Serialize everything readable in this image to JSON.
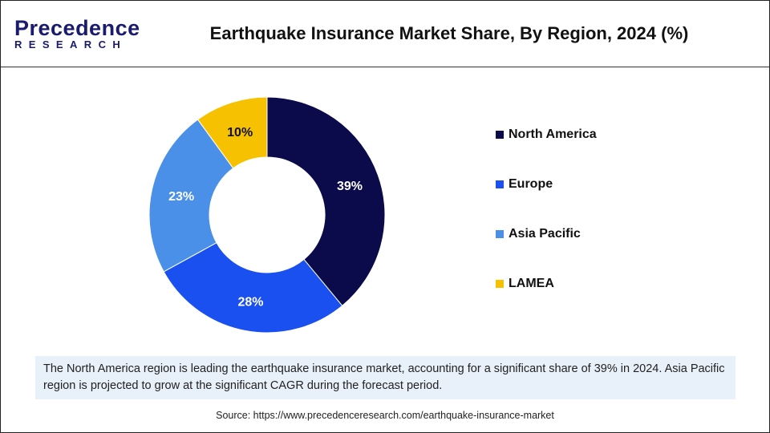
{
  "logo": {
    "line1": "Precedence",
    "line2": "RESEARCH"
  },
  "title": "Earthquake Insurance Market Share, By Region, 2024 (%)",
  "chart_data": {
    "type": "pie",
    "donut": true,
    "title": "Earthquake Insurance Market Share, By Region, 2024 (%)",
    "categories": [
      "North America",
      "Europe",
      "Asia Pacific",
      "LAMEA"
    ],
    "values": [
      39,
      28,
      23,
      10
    ],
    "labels": [
      "39%",
      "28%",
      "23%",
      "10%"
    ],
    "colors": [
      "#0b0b4b",
      "#1a4ff0",
      "#4a90e8",
      "#f6c100"
    ],
    "label_colors": [
      "#ffffff",
      "#ffffff",
      "#ffffff",
      "#111111"
    ],
    "legend_position": "right"
  },
  "note": "The North America region is leading the earthquake insurance market, accounting for a significant share of 39% in 2024. Asia Pacific region is projected to grow at the significant CAGR during the forecast period.",
  "source": "Source: https://www.precedenceresearch.com/earthquake-insurance-market"
}
